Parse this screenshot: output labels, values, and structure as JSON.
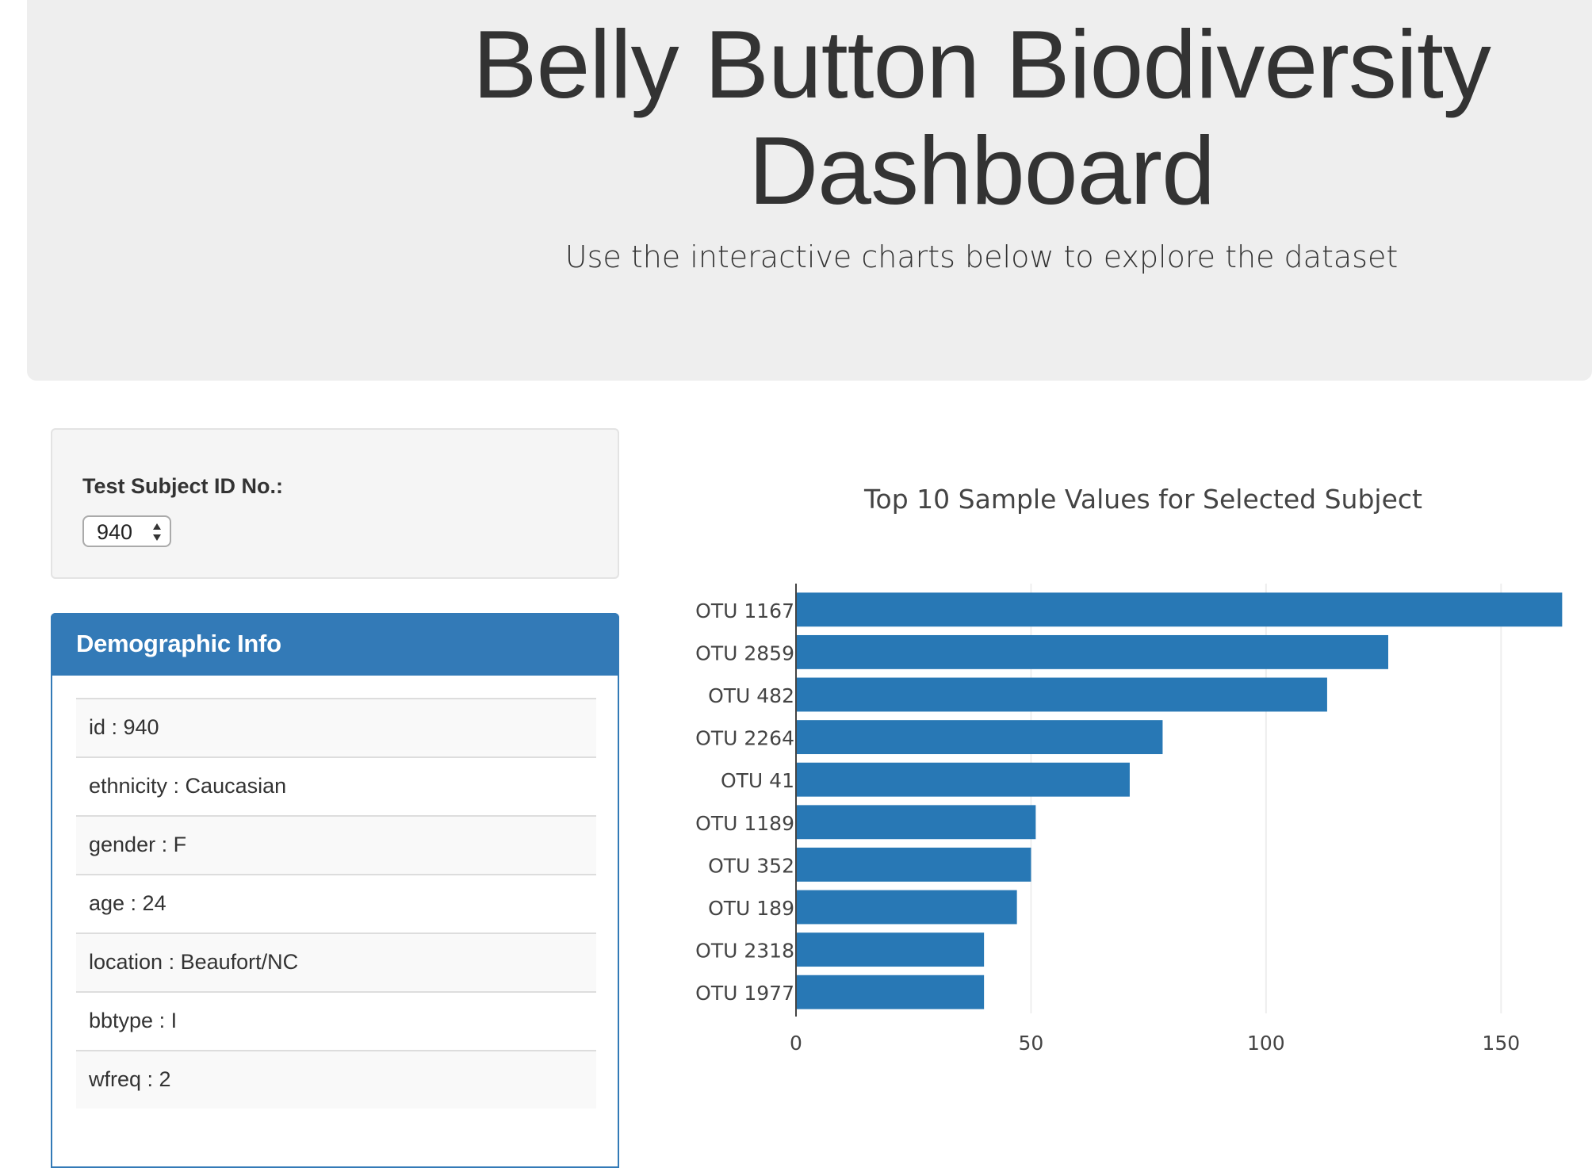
{
  "header": {
    "title": "Belly Button Biodiversity Dashboard",
    "subtitle": "Use the interactive charts below to explore the dataset"
  },
  "selector": {
    "label": "Test Subject ID No.:",
    "selected_value": "940"
  },
  "demographic_panel": {
    "title": "Demographic Info",
    "rows": [
      "id : 940",
      "ethnicity : Caucasian",
      "gender : F",
      "age : 24",
      "location : Beaufort/NC",
      "bbtype : I",
      "wfreq : 2"
    ]
  },
  "colors": {
    "accent": "#337ab7",
    "bar": "#2878b5",
    "jumbotron_bg": "#eeeeee"
  },
  "chart_data": {
    "type": "bar",
    "orientation": "horizontal",
    "title": "Top 10 Sample Values for Selected Subject",
    "categories": [
      "OTU 1167",
      "OTU 2859",
      "OTU 482",
      "OTU 2264",
      "OTU 41",
      "OTU 1189",
      "OTU 352",
      "OTU 189",
      "OTU 2318",
      "OTU 1977"
    ],
    "values": [
      163,
      126,
      113,
      78,
      71,
      51,
      50,
      47,
      40,
      40
    ],
    "xlim": [
      0,
      168
    ],
    "xticks": [
      0,
      50,
      100,
      150
    ],
    "grid": true
  }
}
